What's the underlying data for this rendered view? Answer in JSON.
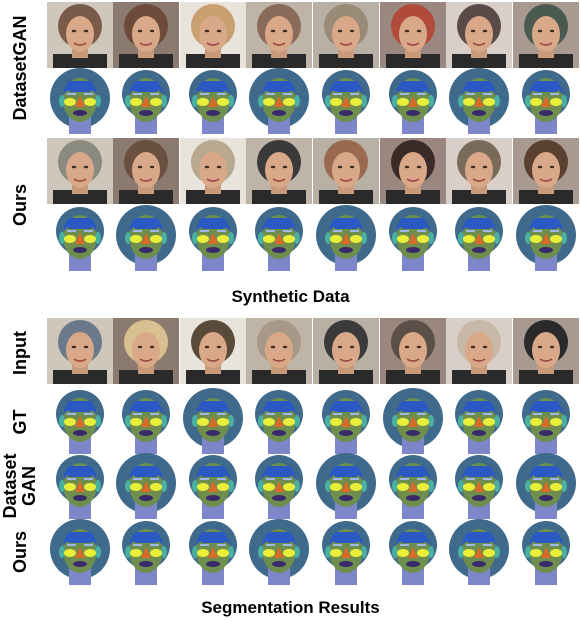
{
  "section_top": {
    "caption": "Synthetic Data",
    "rows": [
      {
        "label": "DatasetGAN",
        "kind": "photo"
      },
      {
        "label": "",
        "kind": "mask"
      },
      {
        "label": "Ours",
        "kind": "photo"
      },
      {
        "label": "",
        "kind": "mask"
      }
    ]
  },
  "section_bottom": {
    "caption": "Segmentation Results",
    "rows": [
      {
        "label": "Input",
        "kind": "photo"
      },
      {
        "label": "GT",
        "kind": "mask"
      },
      {
        "label": "Dataset\nGAN",
        "kind": "mask"
      },
      {
        "label": "Ours",
        "kind": "mask"
      }
    ]
  },
  "colors": {
    "hair": "#3f6a8c",
    "skin": "#6e8e4e",
    "forehead": "#2b59c3",
    "cheek": "#e8ee3a",
    "nose": "#d86a2a",
    "mouth": "#3a2a6a",
    "neck": "#7d86c8",
    "ear": "#4bb0a0",
    "brow": "#9fb8e8"
  },
  "photo_tones": {
    "top_a": [
      "#7a5a48",
      "#6e4a3a",
      "#c9a070",
      "#8a6a58",
      "#9a8a78",
      "#b04a3a",
      "#5a4a48",
      "#4a5a50"
    ],
    "top_b": [
      "#8a8a80",
      "#6a5040",
      "#b8a890",
      "#3a3a3a",
      "#9a6a50",
      "#3a2a28",
      "#7a6a5a",
      "#5a4030"
    ],
    "bottom": [
      "#6a7a8a",
      "#d8c090",
      "#5a4a3a",
      "#a89888",
      "#3a3a3a",
      "#5a5048",
      "#c8b8a8",
      "#2a2a2a"
    ]
  }
}
